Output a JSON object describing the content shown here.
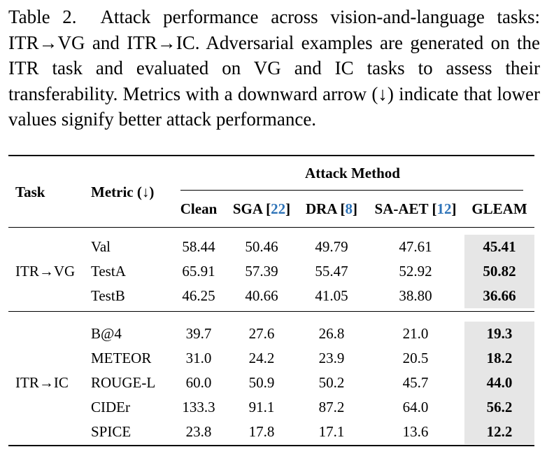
{
  "caption": {
    "label": "Table 2.",
    "text": "Attack performance across vision-and-language tasks: ITR→VG and ITR→IC. Adversarial examples are generated on the ITR task and evaluated on VG and IC tasks to assess their transferability. Metrics with a downward arrow (↓) indicate that lower values signify better attack performance."
  },
  "table": {
    "header": {
      "task": "Task",
      "metric": "Metric (↓)",
      "group": "Attack Method",
      "methods": [
        {
          "name": "Clean",
          "cite": ""
        },
        {
          "name": "SGA ",
          "cite": "22"
        },
        {
          "name": "DRA ",
          "cite": "8"
        },
        {
          "name": "SA-AET ",
          "cite": "12"
        },
        {
          "name": "GLEAM",
          "cite": ""
        }
      ]
    },
    "groups": [
      {
        "task": "ITR→VG",
        "rows": [
          {
            "metric": "Val",
            "values": [
              "58.44",
              "50.46",
              "49.79",
              "47.61",
              "45.41"
            ]
          },
          {
            "metric": "TestA",
            "values": [
              "65.91",
              "57.39",
              "55.47",
              "52.92",
              "50.82"
            ]
          },
          {
            "metric": "TestB",
            "values": [
              "46.25",
              "40.66",
              "41.05",
              "38.80",
              "36.66"
            ]
          }
        ]
      },
      {
        "task": "ITR→IC",
        "rows": [
          {
            "metric": "B@4",
            "values": [
              "39.7",
              "27.6",
              "26.8",
              "21.0",
              "19.3"
            ]
          },
          {
            "metric": "METEOR",
            "values": [
              "31.0",
              "24.2",
              "23.9",
              "20.5",
              "18.2"
            ]
          },
          {
            "metric": "ROUGE-L",
            "values": [
              "60.0",
              "50.9",
              "50.2",
              "45.7",
              "44.0"
            ]
          },
          {
            "metric": "CIDEr",
            "values": [
              "133.3",
              "91.1",
              "87.2",
              "64.0",
              "56.2"
            ]
          },
          {
            "metric": "SPICE",
            "values": [
              "23.8",
              "17.8",
              "17.1",
              "13.6",
              "12.2"
            ]
          }
        ]
      }
    ]
  }
}
